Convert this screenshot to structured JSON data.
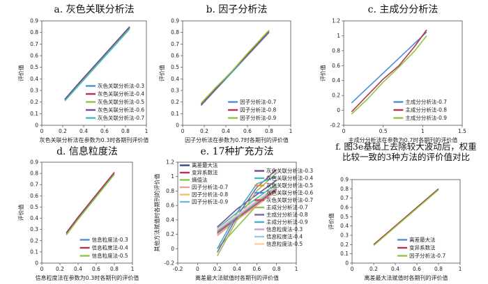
{
  "chart_data": [
    {
      "id": "a",
      "type": "line",
      "title": "a. 灰色关联分析法",
      "xlabel": "灰色关联分析法在参数为0.3时各期刊评价值",
      "ylabel": "评价值",
      "xlim": [
        0,
        1
      ],
      "ylim": [
        0,
        0.9
      ],
      "xticks": [
        "0",
        "0.2",
        "0.4",
        "0.6",
        "0.8",
        "1"
      ],
      "yticks": [
        "0",
        "0.1",
        "0.2",
        "0.3",
        "0.4",
        "0.5",
        "0.6",
        "0.7",
        "0.8",
        "0.9"
      ],
      "legend_position": "lower-right",
      "series": [
        {
          "name": "灰色关联分析法-0.3",
          "color": "#4a90d9",
          "x": [
            0.22,
            0.35,
            0.5,
            0.65,
            0.84
          ],
          "y": [
            0.22,
            0.35,
            0.5,
            0.65,
            0.84
          ]
        },
        {
          "name": "灰色关联分析法-0.4",
          "color": "#b5334e",
          "x": [
            0.22,
            0.35,
            0.5,
            0.65,
            0.84
          ],
          "y": [
            0.22,
            0.355,
            0.505,
            0.655,
            0.845
          ]
        },
        {
          "name": "灰色关联分析法-0.5",
          "color": "#8dc63f",
          "x": [
            0.22,
            0.35,
            0.5,
            0.65,
            0.84
          ],
          "y": [
            0.215,
            0.345,
            0.495,
            0.645,
            0.835
          ]
        },
        {
          "name": "灰色关联分析法-0.6",
          "color": "#6a4c9c",
          "x": [
            0.22,
            0.35,
            0.5,
            0.65,
            0.84
          ],
          "y": [
            0.225,
            0.36,
            0.51,
            0.66,
            0.85
          ]
        },
        {
          "name": "灰色关联分析法-0.7",
          "color": "#40bfc1",
          "x": [
            0.22,
            0.35,
            0.5,
            0.65,
            0.84
          ],
          "y": [
            0.21,
            0.34,
            0.49,
            0.64,
            0.83
          ]
        }
      ]
    },
    {
      "id": "b",
      "type": "line",
      "title": "b. 因子分析法",
      "xlabel": "因子分析法在参数为0.7时各期刊的评价值",
      "ylabel": "评价值",
      "xlim": [
        0,
        1
      ],
      "ylim": [
        0,
        0.9
      ],
      "xticks": [
        "0",
        "0.2",
        "0.4",
        "0.6",
        "0.8",
        "1"
      ],
      "yticks": [
        "0",
        "0.1",
        "0.2",
        "0.3",
        "0.4",
        "0.5",
        "0.6",
        "0.7",
        "0.8",
        "0.9"
      ],
      "legend_position": "lower-right",
      "series": [
        {
          "name": "因子分析法-0.7",
          "color": "#4a90d9",
          "x": [
            0.17,
            0.3,
            0.45,
            0.6,
            0.8
          ],
          "y": [
            0.17,
            0.3,
            0.45,
            0.6,
            0.8
          ]
        },
        {
          "name": "因子分析法-0.8",
          "color": "#b5334e",
          "x": [
            0.17,
            0.3,
            0.45,
            0.6,
            0.8
          ],
          "y": [
            0.18,
            0.31,
            0.46,
            0.61,
            0.81
          ]
        },
        {
          "name": "因子分析法-0.9",
          "color": "#8dc63f",
          "x": [
            0.17,
            0.3,
            0.45,
            0.6,
            0.8
          ],
          "y": [
            0.19,
            0.32,
            0.46,
            0.62,
            0.82
          ]
        }
      ]
    },
    {
      "id": "c",
      "type": "line",
      "title": "c. 主成分分析法",
      "xlabel": "主成分分析法在参数为0.7时各期刊的评价值",
      "ylabel": "评价值",
      "xlim": [
        0,
        1.5
      ],
      "ylim": [
        -0.2,
        1.2
      ],
      "xticks": [
        "0",
        "0.5",
        "1",
        "1.5"
      ],
      "yticks": [
        "-0.2",
        "0",
        "0.2",
        "0.4",
        "0.6",
        "0.8",
        "1",
        "1.2"
      ],
      "legend_position": "lower-right",
      "series": [
        {
          "name": "主成分分析法-0.7",
          "color": "#4a90d9",
          "x": [
            0.1,
            0.3,
            0.5,
            0.7,
            0.9,
            1.05
          ],
          "y": [
            0.1,
            0.3,
            0.5,
            0.7,
            0.9,
            1.05
          ]
        },
        {
          "name": "主成分分析法-0.8",
          "color": "#b5334e",
          "x": [
            0.1,
            0.3,
            0.5,
            0.7,
            0.9,
            1.05
          ],
          "y": [
            -0.02,
            0.2,
            0.42,
            0.6,
            0.86,
            1.08
          ]
        },
        {
          "name": "主成分分析法-0.9",
          "color": "#8dc63f",
          "x": [
            0.1,
            0.3,
            0.5,
            0.7,
            0.9,
            1.05
          ],
          "y": [
            -0.05,
            0.15,
            0.38,
            0.58,
            0.8,
            1.0
          ]
        }
      ]
    },
    {
      "id": "d",
      "type": "line",
      "title": "d. 信息粒度法",
      "xlabel": "信息粒度法在参数为0.3时各期刊的评价值",
      "ylabel": "评价值",
      "xlim": [
        0,
        1
      ],
      "ylim": [
        0,
        0.9
      ],
      "xticks": [
        "0",
        "0.2",
        "0.4",
        "0.6",
        "0.8",
        "1"
      ],
      "yticks": [
        "0",
        "0.1",
        "0.2",
        "0.3",
        "0.4",
        "0.5",
        "0.6",
        "0.7",
        "0.8",
        "0.9"
      ],
      "legend_position": "lower-right",
      "series": [
        {
          "name": "信息粒度法-0.3",
          "color": "#4a90d9",
          "x": [
            0.27,
            0.4,
            0.55,
            0.7,
            0.8
          ],
          "y": [
            0.26,
            0.4,
            0.55,
            0.7,
            0.8
          ]
        },
        {
          "name": "信息粒度法-0.4",
          "color": "#b5334e",
          "x": [
            0.27,
            0.4,
            0.55,
            0.7,
            0.8
          ],
          "y": [
            0.27,
            0.41,
            0.56,
            0.71,
            0.81
          ]
        },
        {
          "name": "信息粒度法-0.5",
          "color": "#8dc63f",
          "x": [
            0.27,
            0.4,
            0.55,
            0.7,
            0.8
          ],
          "y": [
            0.25,
            0.39,
            0.54,
            0.69,
            0.79
          ]
        }
      ]
    },
    {
      "id": "e",
      "type": "line",
      "title": "e. 17种扩充方法",
      "xlabel": "离差最大法赋值时各期刊的评价值",
      "ylabel": "其他方法赋值时各期刊的评价值",
      "xlim": [
        -0.2,
        1
      ],
      "ylim": [
        -0.2,
        1.2
      ],
      "xticks": [
        "-0.2",
        "0",
        "0.2",
        "0.4",
        "0.6",
        "0.8",
        "1"
      ],
      "yticks": [
        "-0.2",
        "0",
        "0.2",
        "0.4",
        "0.6",
        "0.8",
        "1",
        "1.2"
      ],
      "legend_position": "left-and-right-columns",
      "series": [
        {
          "name": "离差最大法",
          "color": "#2c4a8f",
          "x": [
            0.2,
            0.4,
            0.6,
            0.8
          ],
          "y": [
            0.2,
            0.4,
            0.6,
            0.8
          ]
        },
        {
          "name": "变异系数法",
          "color": "#b5334e",
          "x": [
            0.2,
            0.4,
            0.6,
            0.8
          ],
          "y": [
            0.22,
            0.42,
            0.62,
            0.82
          ]
        },
        {
          "name": "熵值法",
          "color": "#8dc63f",
          "x": [
            0.2,
            0.4,
            0.6,
            0.8
          ],
          "y": [
            0.0,
            0.3,
            0.6,
            0.9
          ]
        },
        {
          "name": "因子分析法-0.7",
          "color": "#e8a0a0",
          "x": [
            0.2,
            0.4,
            0.6,
            0.8
          ],
          "y": [
            0.18,
            0.4,
            0.6,
            0.8
          ]
        },
        {
          "name": "因子分析法-0.8",
          "color": "#f0c070",
          "x": [
            0.2,
            0.4,
            0.6,
            0.8
          ],
          "y": [
            0.2,
            0.41,
            0.61,
            0.81
          ]
        },
        {
          "name": "因子分析法-0.9",
          "color": "#70b8e0",
          "x": [
            0.2,
            0.4,
            0.6,
            0.8
          ],
          "y": [
            0.21,
            0.42,
            0.62,
            0.82
          ]
        },
        {
          "name": "灰色关联分析法-0.3",
          "color": "#6a4c9c",
          "x": [
            0.2,
            0.4,
            0.6,
            0.8
          ],
          "y": [
            0.3,
            0.55,
            0.75,
            0.95
          ]
        },
        {
          "name": "灰色关联分析法-0.4",
          "color": "#40bfc1",
          "x": [
            0.2,
            0.4,
            0.6,
            0.8
          ],
          "y": [
            0.28,
            0.5,
            0.7,
            0.9
          ]
        },
        {
          "name": "灰色关联分析法-0.5",
          "color": "#f28e2b",
          "x": [
            0.2,
            0.4,
            0.6,
            0.8
          ],
          "y": [
            0.26,
            0.46,
            0.66,
            0.86
          ]
        },
        {
          "name": "灰色关联分析法-0.6",
          "color": "#4a90d9",
          "x": [
            0.2,
            0.4,
            0.6,
            0.8
          ],
          "y": [
            0.24,
            0.44,
            0.64,
            0.84
          ]
        },
        {
          "name": "灰色关联分析法-0.7",
          "color": "#c0504d",
          "x": [
            0.2,
            0.4,
            0.6,
            0.8
          ],
          "y": [
            0.22,
            0.42,
            0.62,
            0.82
          ]
        },
        {
          "name": "主成分分析法-0.7",
          "color": "#9bbb59",
          "x": [
            0.2,
            0.4,
            0.6,
            0.8
          ],
          "y": [
            -0.1,
            0.4,
            0.8,
            1.05
          ]
        },
        {
          "name": "主成分分析法-0.8",
          "color": "#8064a2",
          "x": [
            0.2,
            0.4,
            0.6,
            0.8
          ],
          "y": [
            -0.05,
            0.45,
            0.85,
            1.1
          ]
        },
        {
          "name": "主成分分析法-0.9",
          "color": "#4bacc6",
          "x": [
            0.2,
            0.4,
            0.6,
            0.8
          ],
          "y": [
            0.0,
            0.5,
            0.9,
            1.0
          ]
        },
        {
          "name": "信息粒度法-0.3",
          "color": "#c9a0dc",
          "x": [
            0.2,
            0.4,
            0.6,
            0.8
          ],
          "y": [
            0.25,
            0.45,
            0.65,
            0.85
          ]
        },
        {
          "name": "信息粒度法-0.4",
          "color": "#9ecae1",
          "x": [
            0.2,
            0.4,
            0.6,
            0.8
          ],
          "y": [
            0.26,
            0.46,
            0.66,
            0.86
          ]
        },
        {
          "name": "信息粒度法-0.5",
          "color": "#fdd0a2",
          "x": [
            0.2,
            0.4,
            0.6,
            0.8
          ],
          "y": [
            0.27,
            0.47,
            0.67,
            0.87
          ]
        }
      ]
    },
    {
      "id": "f",
      "type": "line",
      "title": "f. 图3e基础上去除较大波动后，权重比较一致的3种方法的评价值对比",
      "title_lines": [
        "f. 图3e基础上去除较大波动后，权重",
        "比较一致的3种方法的评价值对比"
      ],
      "xlabel": "离差最大法赋值时各期刊的评价值",
      "ylabel": "评价值",
      "xlim": [
        0,
        1
      ],
      "ylim": [
        0,
        0.9
      ],
      "xticks": [
        "0",
        "0.2",
        "0.4",
        "0.6",
        "0.8",
        "1"
      ],
      "yticks": [
        "0",
        "0.1",
        "0.2",
        "0.3",
        "0.4",
        "0.5",
        "0.6",
        "0.7",
        "0.8",
        "0.9"
      ],
      "legend_position": "lower-right",
      "series": [
        {
          "name": "离差最大法",
          "color": "#4a90d9",
          "x": [
            0.2,
            0.4,
            0.6,
            0.8
          ],
          "y": [
            0.2,
            0.4,
            0.6,
            0.8
          ]
        },
        {
          "name": "变异系数法",
          "color": "#b5334e",
          "x": [
            0.2,
            0.4,
            0.6,
            0.8
          ],
          "y": [
            0.2,
            0.4,
            0.6,
            0.8
          ]
        },
        {
          "name": "因子分析法-0.7",
          "color": "#8dc63f",
          "x": [
            0.2,
            0.4,
            0.6,
            0.8
          ],
          "y": [
            0.19,
            0.39,
            0.59,
            0.79
          ]
        }
      ]
    }
  ]
}
